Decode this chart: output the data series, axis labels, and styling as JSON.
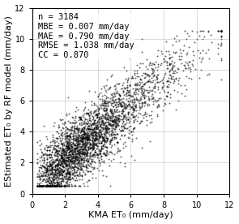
{
  "n": 3184,
  "mbe": 0.007,
  "mae": 0.79,
  "rmse": 1.038,
  "cc": 0.87,
  "xlabel": "KMA ET₀ (mm/day)",
  "ylabel": "EStimated ET₀ by RF model (mm/day)",
  "xlim": [
    0,
    12
  ],
  "ylim": [
    0,
    12
  ],
  "xticks": [
    0,
    2,
    4,
    6,
    8,
    10,
    12
  ],
  "yticks": [
    0,
    2,
    4,
    6,
    8,
    10,
    12
  ],
  "dot_color": "black",
  "dot_size": 2,
  "dot_alpha": 0.6,
  "background_color": "white",
  "annotation_fontsize": 7.5,
  "axis_label_fontsize": 8,
  "tick_fontsize": 7
}
